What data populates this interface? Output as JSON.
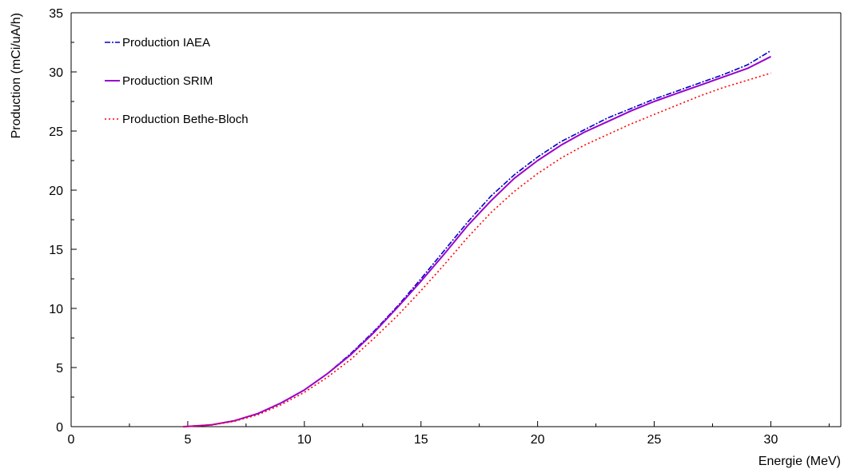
{
  "chart_data": {
    "type": "line",
    "xlabel": "Energie (MeV)",
    "ylabel": "Production (mCi/uA/h)",
    "xlim": [
      0,
      33
    ],
    "ylim": [
      0,
      35
    ],
    "x_ticks": [
      0,
      5,
      10,
      15,
      20,
      25,
      30
    ],
    "y_ticks": [
      0,
      5,
      10,
      15,
      20,
      25,
      30,
      35
    ],
    "grid": false,
    "legend_position": "top-left",
    "series": [
      {
        "name": "Production IAEA",
        "color": "#0000cc",
        "style": "dash-dot",
        "points": [
          [
            4.8,
            0
          ],
          [
            5,
            0.02
          ],
          [
            6,
            0.15
          ],
          [
            7,
            0.5
          ],
          [
            8,
            1.1
          ],
          [
            9,
            2.0
          ],
          [
            10,
            3.1
          ],
          [
            11,
            4.5
          ],
          [
            12,
            6.2
          ],
          [
            13,
            8.1
          ],
          [
            14,
            10.2
          ],
          [
            15,
            12.5
          ],
          [
            16,
            14.9
          ],
          [
            17,
            17.3
          ],
          [
            18,
            19.5
          ],
          [
            19,
            21.3
          ],
          [
            20,
            22.8
          ],
          [
            21,
            24.1
          ],
          [
            22,
            25.1
          ],
          [
            23,
            26.1
          ],
          [
            24,
            26.9
          ],
          [
            25,
            27.7
          ],
          [
            26,
            28.4
          ],
          [
            27,
            29.1
          ],
          [
            28,
            29.8
          ],
          [
            29,
            30.6
          ],
          [
            30,
            31.8
          ]
        ]
      },
      {
        "name": "Production SRIM",
        "color": "#9900cc",
        "style": "solid",
        "points": [
          [
            4.8,
            0
          ],
          [
            5,
            0.02
          ],
          [
            6,
            0.15
          ],
          [
            7,
            0.5
          ],
          [
            8,
            1.1
          ],
          [
            9,
            2.0
          ],
          [
            10,
            3.1
          ],
          [
            11,
            4.5
          ],
          [
            12,
            6.1
          ],
          [
            13,
            8.0
          ],
          [
            14,
            10.1
          ],
          [
            15,
            12.3
          ],
          [
            16,
            14.6
          ],
          [
            17,
            17.0
          ],
          [
            18,
            19.1
          ],
          [
            19,
            21.0
          ],
          [
            20,
            22.5
          ],
          [
            21,
            23.8
          ],
          [
            22,
            24.9
          ],
          [
            23,
            25.8
          ],
          [
            24,
            26.7
          ],
          [
            25,
            27.5
          ],
          [
            26,
            28.2
          ],
          [
            27,
            28.9
          ],
          [
            28,
            29.6
          ],
          [
            29,
            30.3
          ],
          [
            30,
            31.3
          ]
        ]
      },
      {
        "name": "Production Bethe-Bloch",
        "color": "#ff0000",
        "style": "dotted",
        "points": [
          [
            4.8,
            0
          ],
          [
            5,
            0.02
          ],
          [
            6,
            0.13
          ],
          [
            7,
            0.45
          ],
          [
            8,
            1.0
          ],
          [
            9,
            1.85
          ],
          [
            10,
            2.9
          ],
          [
            11,
            4.2
          ],
          [
            12,
            5.7
          ],
          [
            13,
            7.5
          ],
          [
            14,
            9.4
          ],
          [
            15,
            11.5
          ],
          [
            16,
            13.7
          ],
          [
            17,
            16.0
          ],
          [
            18,
            18.1
          ],
          [
            19,
            19.9
          ],
          [
            20,
            21.4
          ],
          [
            21,
            22.7
          ],
          [
            22,
            23.8
          ],
          [
            23,
            24.7
          ],
          [
            24,
            25.6
          ],
          [
            25,
            26.4
          ],
          [
            26,
            27.2
          ],
          [
            27,
            28.0
          ],
          [
            28,
            28.7
          ],
          [
            29,
            29.3
          ],
          [
            30,
            29.9
          ]
        ]
      }
    ]
  }
}
